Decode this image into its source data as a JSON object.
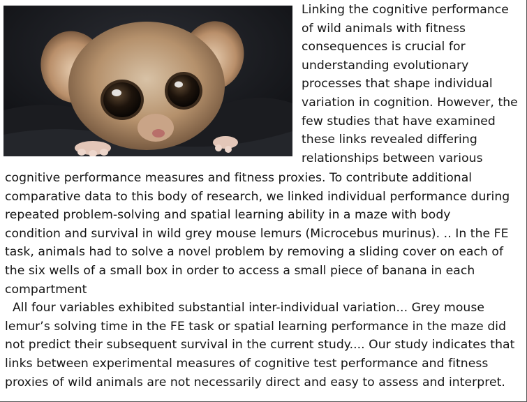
{
  "image": {
    "subject": "mouse-lemur-photo"
  },
  "article": {
    "wrap_lines": [
      "Linking the cognitive performance",
      "of wild animals with fitness",
      "consequences is crucial for",
      "understanding evolutionary",
      "processes that shape individual",
      "variation in cognition. However, the",
      "few studies that have examined",
      "these links revealed differing",
      "relationships between various"
    ],
    "full_lines": [
      "cognitive performance measures and fitness proxies. To contribute additional",
      "comparative data to this body of research, we linked individual performance during",
      "repeated problem-solving and spatial learning ability in a maze with body",
      "condition and survival in wild grey mouse lemurs (Microcebus murinus). .. In the FE",
      "task, animals had to solve a novel problem by removing a sliding cover on each of",
      "the six wells of a small box in order to access a small piece of banana in each",
      "compartment",
      "All four variables exhibited substantial inter-individual variation... Grey mouse",
      "lemur’s solving time in the FE task or spatial learning performance in the maze did",
      "not predict their subsequent survival in the current study.... Our study indicates that",
      "links between experimental measures of cognitive test performance and fitness",
      "proxies of wild animals are not necessarily direct and easy to assess and interpret."
    ]
  }
}
